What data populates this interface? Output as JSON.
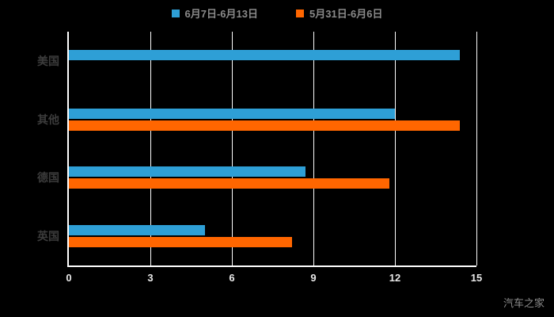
{
  "chart_data": {
    "type": "bar",
    "orientation": "horizontal",
    "title": "",
    "xlabel": "",
    "ylabel": "",
    "categories": [
      "美国",
      "其他",
      "德国",
      "英国"
    ],
    "series": [
      {
        "name": "6月7日-6月13日",
        "color": "#2E9FD6",
        "values": [
          14.4,
          12,
          8.7,
          5
        ]
      },
      {
        "name": "5月31日-6月6日",
        "color": "#FF6600",
        "values": [
          0,
          14.4,
          11.8,
          8.2
        ]
      }
    ],
    "xlim": [
      0,
      15
    ],
    "xticks": [
      0,
      3,
      6,
      9,
      12,
      15
    ],
    "grid": true,
    "legend_position": "top",
    "background": "#000000"
  },
  "watermark": "汽车之家"
}
